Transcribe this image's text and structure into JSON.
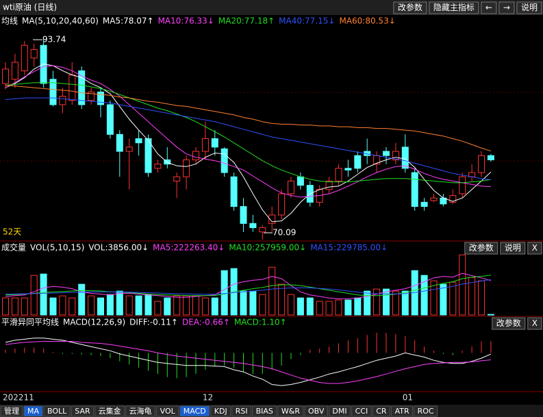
{
  "header": {
    "title": "wti原油 (日线)",
    "buttons": [
      "改参数",
      "隐藏主指标",
      "←",
      "→",
      "说明"
    ]
  },
  "price_panel": {
    "legend": [
      {
        "text": "均线",
        "color": "#ffffff"
      },
      {
        "text": "MA(5,10,20,40,60)",
        "color": "#ffffff"
      },
      {
        "text": "MA5:78.07↑",
        "color": "#ffffff"
      },
      {
        "text": "MA10:76.33↓",
        "color": "#ff40ff"
      },
      {
        "text": "MA20:77.18↑",
        "color": "#20e020"
      },
      {
        "text": "MA40:77.15↓",
        "color": "#3050ff"
      },
      {
        "text": "MA60:80.53↓",
        "color": "#ff8030"
      }
    ],
    "ylim": [
      69.93,
      95.92
    ],
    "up_color": "#ff3232",
    "down_color": "#54ffff",
    "candles": {
      "open": [
        88.5,
        89,
        90,
        91.5,
        93,
        89,
        86,
        86.5,
        90,
        86.5,
        87.5,
        86,
        82.5,
        80.5,
        82,
        82,
        78.5,
        79.5,
        77,
        77.5,
        79.5,
        80.5,
        82,
        80.8,
        77.5,
        74,
        72,
        71,
        72,
        73,
        75.5,
        77.5,
        76.5,
        74.5,
        76,
        77,
        78.5,
        80,
        80.5,
        79,
        80.5,
        79.5,
        81,
        78,
        74.5,
        74.7,
        75,
        74.5,
        75.5,
        77.5,
        78,
        80
      ],
      "high": [
        91,
        92,
        93.5,
        93.2,
        93.74,
        90,
        88,
        91,
        90.5,
        88,
        88,
        86.5,
        83,
        82,
        83,
        82.5,
        79.5,
        81,
        78,
        80,
        81,
        84,
        83,
        81,
        78,
        75,
        73,
        71.8,
        74,
        76,
        77.5,
        78,
        77,
        76.5,
        77.5,
        79,
        79.5,
        80.5,
        82,
        80.5,
        81,
        81.5,
        82.5,
        78.5,
        75,
        75.5,
        75.5,
        76,
        78,
        79,
        80.5,
        80.2
      ],
      "low": [
        87.8,
        88,
        89.5,
        90.5,
        88,
        85.8,
        85,
        86,
        85.5,
        86,
        84.5,
        82,
        77.5,
        76,
        80,
        77.5,
        78,
        78.5,
        75,
        76,
        79,
        79.5,
        80,
        77.5,
        73.5,
        71,
        71,
        70.09,
        71,
        72.5,
        75,
        76,
        74,
        74,
        75.5,
        76.5,
        77.5,
        78,
        79,
        78,
        79,
        79,
        78,
        73.5,
        73.5,
        74.5,
        74,
        74.3,
        75,
        77,
        77.5,
        79.3
      ],
      "close": [
        90.2,
        91,
        93,
        92.5,
        88.5,
        86,
        87,
        89.5,
        86,
        87.5,
        86,
        82.5,
        80.5,
        81,
        81.5,
        78,
        79,
        79,
        77.5,
        79.5,
        80.5,
        82,
        81,
        78,
        74,
        72,
        71.5,
        71.5,
        73,
        75.5,
        77,
        76.5,
        74.5,
        76,
        77,
        78.5,
        78.3,
        78.5,
        80,
        80,
        80,
        80.5,
        78.5,
        74,
        74,
        75,
        74.3,
        75.3,
        77.5,
        78,
        80,
        79.5
      ]
    },
    "ma_lines": [
      {
        "color": "#ffffff",
        "values": [
          88.0,
          88.5,
          89.2,
          90.2,
          90.8,
          90.6,
          90.0,
          89.5,
          89.2,
          88.5,
          88.0,
          87.3,
          85.8,
          84.3,
          83.0,
          81.8,
          80.2,
          79.2,
          78.8,
          78.7,
          79.0,
          79.8,
          80.3,
          80.2,
          79.2,
          77.5,
          75.5,
          73.6,
          72.2,
          72.3,
          73.2,
          74.5,
          75.5,
          76.0,
          76.3,
          76.4,
          77.0,
          77.8,
          78.6,
          79.1,
          79.5,
          79.8,
          79.6,
          78.6,
          77.2,
          75.9,
          75.0,
          74.6,
          75.0,
          76.0,
          77.0,
          78.07
        ]
      },
      {
        "color": "#ff40ff",
        "values": [
          88.0,
          88.6,
          89.3,
          89.9,
          90.5,
          90.6,
          90.4,
          90.0,
          89.4,
          88.9,
          88.5,
          87.8,
          87.0,
          86.0,
          85.0,
          84.0,
          83.0,
          82.0,
          81.0,
          80.2,
          79.8,
          79.6,
          79.4,
          79.1,
          78.7,
          78.3,
          77.6,
          76.9,
          76.2,
          75.6,
          75.3,
          75.1,
          75.2,
          75.3,
          75.5,
          75.9,
          76.4,
          76.9,
          77.5,
          78.0,
          78.4,
          78.7,
          78.8,
          78.4,
          77.9,
          77.5,
          77.2,
          77.0,
          76.8,
          76.6,
          76.4,
          76.33
        ]
      },
      {
        "color": "#20e020",
        "values": [
          88.3,
          88.4,
          88.5,
          88.6,
          88.6,
          88.6,
          88.5,
          88.4,
          88.3,
          88.1,
          87.9,
          87.6,
          87.2,
          86.8,
          86.4,
          86.0,
          85.6,
          85.3,
          84.9,
          84.5,
          84.0,
          83.4,
          82.8,
          82.2,
          81.5,
          80.8,
          80.1,
          79.4,
          78.8,
          78.3,
          77.9,
          77.5,
          77.2,
          77.0,
          76.9,
          76.9,
          76.9,
          77.0,
          77.1,
          77.2,
          77.3,
          77.3,
          77.3,
          77.2,
          77.1,
          77.0,
          76.9,
          76.8,
          76.8,
          76.9,
          77.0,
          77.18
        ]
      },
      {
        "color": "#3050ff",
        "values": [
          86.6,
          86.7,
          86.8,
          86.8,
          86.8,
          86.8,
          86.7,
          86.6,
          86.5,
          86.4,
          86.3,
          86.2,
          86.0,
          85.8,
          85.6,
          85.4,
          85.2,
          85.0,
          84.8,
          84.6,
          84.4,
          84.2,
          84.0,
          83.7,
          83.4,
          83.1,
          82.8,
          82.5,
          82.2,
          82.0,
          81.8,
          81.6,
          81.4,
          81.2,
          81.0,
          80.8,
          80.6,
          80.4,
          80.2,
          80.0,
          79.8,
          79.6,
          79.4,
          79.1,
          78.8,
          78.5,
          78.2,
          77.9,
          77.7,
          77.5,
          77.3,
          77.15
        ]
      },
      {
        "color": "#ff8030",
        "values": [
          88.3,
          88.2,
          88.1,
          88.0,
          87.9,
          87.8,
          87.7,
          87.6,
          87.4,
          87.3,
          87.2,
          87.1,
          86.9,
          86.8,
          86.6,
          86.4,
          86.3,
          86.1,
          85.9,
          85.8,
          85.6,
          85.4,
          85.2,
          85.0,
          84.8,
          84.5,
          84.3,
          84.0,
          83.8,
          83.7,
          83.7,
          83.6,
          83.6,
          83.5,
          83.5,
          83.4,
          83.4,
          83.3,
          83.3,
          83.2,
          83.2,
          83.1,
          83.0,
          82.9,
          82.7,
          82.5,
          82.3,
          82.0,
          81.7,
          81.3,
          80.9,
          80.53
        ]
      }
    ],
    "annotations": [
      "93.74",
      "70.09"
    ],
    "period": "52天"
  },
  "volume_panel": {
    "legend": [
      {
        "text": "成交量",
        "color": "#ffffff"
      },
      {
        "text": "VOL(5,10,15)",
        "color": "#ffffff"
      },
      {
        "text": "VOL:3856.00↓",
        "color": "#ffffff"
      },
      {
        "text": "MA5:222263.40↓",
        "color": "#ff40ff"
      },
      {
        "text": "MA10:257959.00↓",
        "color": "#20e020"
      },
      {
        "text": "MA15:229785.00↓",
        "color": "#3050ff"
      }
    ],
    "buttons": [
      "改参数",
      "说明",
      "X"
    ],
    "ylim": [
      0,
      390000
    ],
    "values": [
      110500,
      110500,
      110500,
      256360,
      265200,
      110500,
      123760,
      110500,
      198900,
      123760,
      110500,
      132600,
      154700,
      123760,
      123760,
      132600,
      88400,
      110500,
      123760,
      123760,
      123760,
      110500,
      110500,
      287300,
      300560,
      154700,
      154700,
      132600,
      309400,
      198900,
      132600,
      110500,
      110500,
      88400,
      88400,
      97240,
      97240,
      110500,
      154700,
      167960,
      167960,
      154700,
      154700,
      287300,
      256360,
      221000,
      198900,
      212160,
      388960,
      243100,
      221000,
      3856
    ],
    "ma_lines": [
      {
        "color": "#ff40ff",
        "values": [
          120000,
          125000,
          130000,
          150000,
          175000,
          185000,
          180000,
          170000,
          150000,
          140000,
          135000,
          130000,
          140000,
          140000,
          135000,
          130000,
          125000,
          120000,
          115000,
          115000,
          120000,
          125000,
          130000,
          165000,
          200000,
          215000,
          225000,
          230000,
          250000,
          235000,
          190000,
          150000,
          130000,
          120000,
          110000,
          105000,
          105000,
          110000,
          120000,
          135000,
          150000,
          160000,
          170000,
          190000,
          215000,
          240000,
          250000,
          245000,
          270000,
          255000,
          240000,
          222263.4
        ]
      },
      {
        "color": "#20e020",
        "values": [
          130000,
          132000,
          135000,
          140000,
          145000,
          150000,
          152000,
          155000,
          158000,
          157000,
          155000,
          150000,
          148000,
          145000,
          140000,
          135000,
          132000,
          130000,
          128000,
          126000,
          125000,
          125000,
          126000,
          135000,
          150000,
          160000,
          170000,
          178000,
          190000,
          195000,
          195000,
          190000,
          180000,
          170000,
          160000,
          150000,
          140000,
          130000,
          125000,
          125000,
          128000,
          135000,
          145000,
          160000,
          175000,
          190000,
          205000,
          215000,
          235000,
          245000,
          250000,
          257959
        ]
      },
      {
        "color": "#3050ff",
        "values": [
          135000,
          136000,
          137000,
          138000,
          140000,
          142000,
          144000,
          146000,
          148000,
          149000,
          150000,
          150000,
          149000,
          148000,
          146000,
          144000,
          142000,
          140000,
          138000,
          136000,
          135000,
          134000,
          134000,
          138000,
          145000,
          150000,
          155000,
          160000,
          168000,
          172000,
          175000,
          176000,
          175000,
          172000,
          168000,
          162000,
          155000,
          148000,
          142000,
          138000,
          136000,
          136000,
          138000,
          145000,
          155000,
          165000,
          175000,
          185000,
          200000,
          210000,
          220000,
          229785
        ]
      }
    ]
  },
  "macd_panel": {
    "legend": [
      {
        "text": "平滑异同平均线",
        "color": "#ffffff"
      },
      {
        "text": "MACD(12,26,9)",
        "color": "#ffffff"
      },
      {
        "text": "DIFF:-0.11↑",
        "color": "#ffffff"
      },
      {
        "text": "DEA:-0.66↑",
        "color": "#ff40ff"
      },
      {
        "text": "MACD:1.10↑",
        "color": "#20e020"
      }
    ],
    "buttons": [
      "改参数",
      "X"
    ],
    "ylim": [
      -3.55,
      2.3
    ],
    "pos_color": "#ff3232",
    "neg_color": "#20e020",
    "histogram": [
      0.3,
      0.4,
      0.5,
      0.5,
      0.4,
      0.1,
      -0.1,
      -0.1,
      -0.15,
      -0.2,
      -0.3,
      -0.5,
      -0.8,
      -1.1,
      -1.4,
      -1.7,
      -2.0,
      -2.3,
      -2.4,
      -2.3,
      -2.0,
      -1.6,
      -1.3,
      -1.2,
      -1.4,
      -1.8,
      -2.0,
      -2.0,
      -1.6,
      -1.2,
      -0.6,
      -0.2,
      0.3,
      0.4,
      0.6,
      0.9,
      1.2,
      1.4,
      1.7,
      1.9,
      1.9,
      1.8,
      1.6,
      1.2,
      0.6,
      0.2,
      -0.1,
      -0.2,
      0.2,
      0.6,
      1.1,
      1.1
    ],
    "lines": [
      {
        "color": "#ffffff",
        "values": [
          1.0,
          1.2,
          1.3,
          1.4,
          1.4,
          1.3,
          1.2,
          1.0,
          0.8,
          0.6,
          0.4,
          0.2,
          -0.1,
          -0.3,
          -0.5,
          -0.7,
          -0.9,
          -1.0,
          -1.1,
          -1.2,
          -1.2,
          -1.2,
          -1.25,
          -1.3,
          -1.6,
          -1.8,
          -2.2,
          -2.5,
          -3.0,
          -3.1,
          -3.0,
          -2.8,
          -2.55,
          -2.3,
          -2.0,
          -1.8,
          -1.55,
          -1.3,
          -1.0,
          -0.7,
          -0.5,
          -0.3,
          0.0,
          -0.2,
          -0.4,
          -0.7,
          -0.9,
          -1.0,
          -1.0,
          -0.8,
          -0.5,
          -0.11
        ]
      },
      {
        "color": "#ff40ff",
        "values": [
          0.8,
          0.9,
          1.0,
          1.05,
          1.1,
          1.1,
          1.1,
          1.1,
          1.0,
          0.95,
          0.9,
          0.8,
          0.65,
          0.5,
          0.35,
          0.2,
          0.0,
          -0.15,
          -0.3,
          -0.4,
          -0.5,
          -0.6,
          -0.7,
          -0.8,
          -0.9,
          -1.0,
          -1.15,
          -1.3,
          -1.5,
          -1.8,
          -2.1,
          -2.4,
          -2.6,
          -2.8,
          -2.9,
          -2.9,
          -2.8,
          -2.65,
          -2.45,
          -2.25,
          -2.0,
          -1.75,
          -1.5,
          -1.3,
          -1.1,
          -1.0,
          -0.95,
          -0.9,
          -0.9,
          -0.85,
          -0.75,
          -0.66
        ]
      }
    ]
  },
  "x_axis": {
    "labels": [
      "202211",
      "12",
      "01"
    ]
  },
  "tabs": {
    "items": [
      "管理",
      "MA",
      "BOLL",
      "SAR",
      "云集金",
      "云海龟",
      "VOL",
      "MACD",
      "KDJ",
      "RSI",
      "BIAS",
      "W&R",
      "OBV",
      "DMI",
      "CCI",
      "CR",
      "ATR",
      "ROC"
    ],
    "active": [
      1,
      7
    ]
  }
}
